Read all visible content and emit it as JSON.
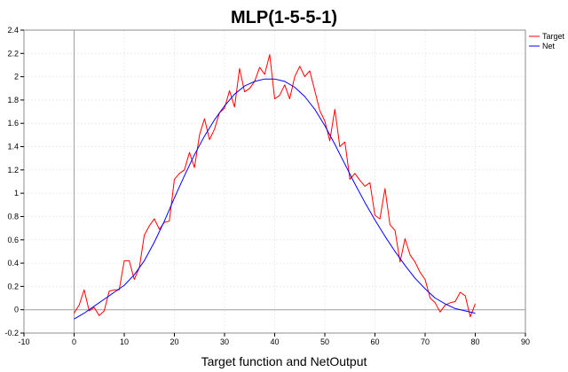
{
  "chart_data": {
    "type": "line",
    "title": "MLP(1-5-5-1)",
    "xlabel": "Target function and NetOutput",
    "ylabel": "",
    "xlim": [
      -10,
      90
    ],
    "ylim": [
      -0.2,
      2.4
    ],
    "xticks": [
      -10,
      0,
      10,
      20,
      30,
      40,
      50,
      60,
      70,
      80,
      90
    ],
    "yticks": [
      -0.2,
      0,
      0.2,
      0.4,
      0.6,
      0.8,
      1,
      1.2,
      1.4,
      1.6,
      1.8,
      2,
      2.2,
      2.4
    ],
    "xtick_labels": [
      "-10",
      "0",
      "10",
      "20",
      "30",
      "40",
      "50",
      "60",
      "70",
      "80",
      "90"
    ],
    "ytick_labels": [
      "-0.2",
      "0",
      "0.2",
      "0.4",
      "0.6",
      "0.8",
      "1",
      "1.2",
      "1.4",
      "1.6",
      "1.8",
      "2",
      "2.2",
      "2.4"
    ],
    "grid": true,
    "legend_position": "top-right",
    "series": [
      {
        "name": "Target",
        "color": "#ff0000",
        "x": [
          0,
          1,
          2,
          3,
          4,
          5,
          6,
          7,
          8,
          9,
          10,
          11,
          12,
          13,
          14,
          15,
          16,
          17,
          18,
          19,
          20,
          21,
          22,
          23,
          24,
          25,
          26,
          27,
          28,
          29,
          30,
          31,
          32,
          33,
          34,
          35,
          36,
          37,
          38,
          39,
          40,
          41,
          42,
          43,
          44,
          45,
          46,
          47,
          48,
          49,
          50,
          51,
          52,
          53,
          54,
          55,
          56,
          57,
          58,
          59,
          60,
          61,
          62,
          63,
          64,
          65,
          66,
          67,
          68,
          69,
          70,
          71,
          72,
          73,
          74,
          75,
          76,
          77,
          78,
          79,
          80
        ],
        "y": [
          -0.03,
          0.04,
          0.17,
          -0.01,
          0.02,
          -0.05,
          -0.01,
          0.16,
          0.17,
          0.17,
          0.42,
          0.42,
          0.26,
          0.36,
          0.64,
          0.72,
          0.78,
          0.69,
          0.75,
          0.76,
          1.12,
          1.17,
          1.2,
          1.35,
          1.22,
          1.5,
          1.64,
          1.46,
          1.55,
          1.69,
          1.73,
          1.88,
          1.74,
          2.07,
          1.87,
          1.9,
          1.96,
          2.08,
          2.02,
          2.19,
          1.81,
          1.84,
          1.93,
          1.81,
          2.0,
          2.09,
          2.0,
          2.05,
          1.88,
          1.71,
          1.62,
          1.45,
          1.72,
          1.4,
          1.44,
          1.12,
          1.17,
          1.11,
          1.06,
          1.09,
          0.81,
          0.78,
          1.04,
          0.73,
          0.68,
          0.41,
          0.61,
          0.47,
          0.41,
          0.32,
          0.26,
          0.1,
          0.06,
          -0.02,
          0.04,
          0.06,
          0.07,
          0.15,
          0.12,
          -0.06,
          0.05
        ]
      },
      {
        "name": "Net",
        "color": "#0000ff",
        "x": [
          0,
          2,
          4,
          6,
          8,
          10,
          12,
          14,
          16,
          18,
          20,
          22,
          24,
          26,
          28,
          30,
          32,
          34,
          36,
          38,
          40,
          42,
          44,
          46,
          48,
          50,
          52,
          54,
          56,
          58,
          60,
          62,
          64,
          66,
          68,
          70,
          72,
          74,
          76,
          78,
          80
        ],
        "y": [
          -0.08,
          -0.03,
          0.03,
          0.09,
          0.15,
          0.21,
          0.3,
          0.42,
          0.58,
          0.76,
          0.96,
          1.15,
          1.33,
          1.49,
          1.63,
          1.75,
          1.85,
          1.92,
          1.96,
          1.98,
          1.98,
          1.96,
          1.91,
          1.83,
          1.72,
          1.58,
          1.42,
          1.25,
          1.08,
          0.92,
          0.77,
          0.63,
          0.5,
          0.38,
          0.27,
          0.18,
          0.1,
          0.05,
          0.01,
          -0.01,
          -0.03
        ]
      }
    ]
  }
}
